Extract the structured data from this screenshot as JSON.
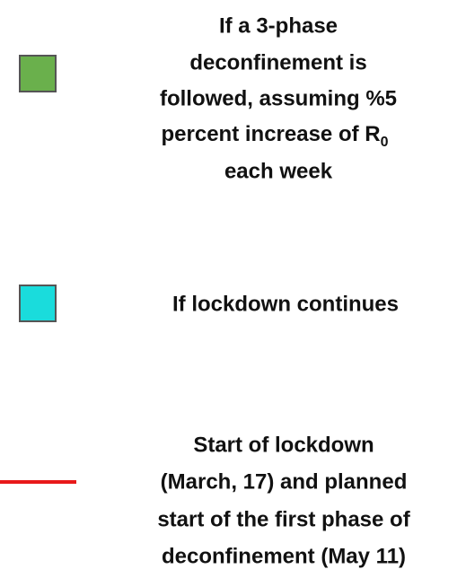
{
  "legend": {
    "items": [
      {
        "color": "#6ab04c",
        "marker": "square",
        "lines": [
          "If a 3-phase",
          "deconfinement is",
          "followed, assuming %5",
          "percent increase of R",
          "each week"
        ],
        "subscript": "0"
      },
      {
        "color": "#1adcdc",
        "marker": "square",
        "lines": [
          "If lockdown continues"
        ]
      },
      {
        "color": "#e8191a",
        "marker": "line",
        "lines": [
          "Start of lockdown",
          "(March, 17) and planned",
          "start of the first phase of",
          "deconfinement (May 11)"
        ]
      }
    ]
  }
}
